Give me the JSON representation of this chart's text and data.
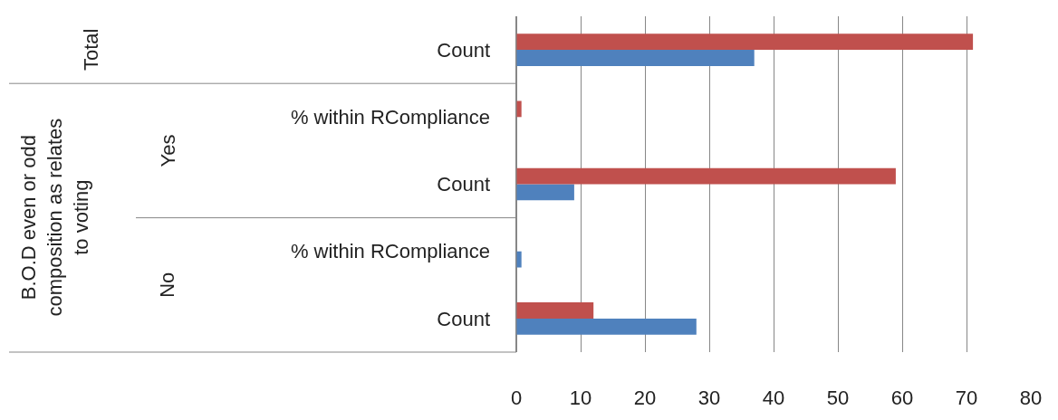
{
  "chart_data": {
    "type": "bar",
    "orientation": "horizontal",
    "categories": [
      "Count",
      "% within RCompliance",
      "Count",
      "% within RCompliance",
      "Count"
    ],
    "series": [
      {
        "color": "#4f81bd",
        "values": [
          37,
          null,
          9,
          0.8,
          28
        ]
      },
      {
        "color": "#c0504d",
        "values": [
          71,
          0.8,
          59,
          null,
          12
        ]
      }
    ],
    "xlim": [
      0,
      80
    ],
    "xticks": [
      0,
      10,
      20,
      30,
      40,
      50,
      60,
      70,
      80
    ],
    "grid": "x",
    "legend": false,
    "annotations": [
      "Total",
      "Yes",
      "No",
      "B.O.D even or odd composition as relates to voting"
    ]
  }
}
